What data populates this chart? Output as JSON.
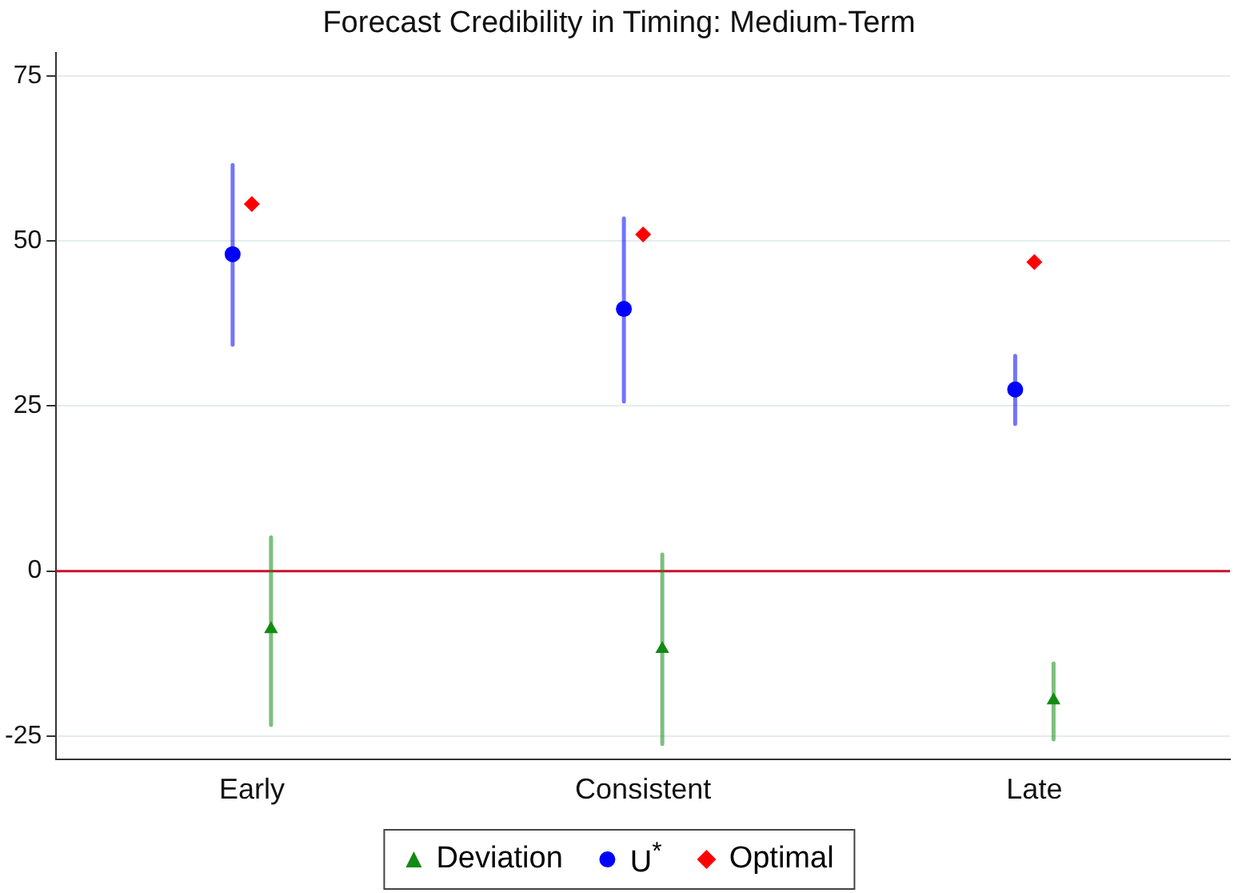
{
  "chart_data": {
    "type": "scatter",
    "title": "Forecast Credibility in Timing: Medium-Term",
    "categories": [
      "Early",
      "Consistent",
      "Late"
    ],
    "series": [
      {
        "name": "Deviation",
        "color": "#138a13",
        "marker": "triangle",
        "values": [
          -8.8,
          -11.8,
          -19.6
        ],
        "errors": [
          [
            -23.3,
            5.1
          ],
          [
            -26.2,
            2.5
          ],
          [
            -25.5,
            -14
          ]
        ]
      },
      {
        "name": "U$^{*}$",
        "color": "#0000ff",
        "marker": "circle",
        "values": [
          48,
          39.7,
          27.5
        ],
        "errors": [
          [
            34.3,
            61.5
          ],
          [
            25.7,
            53.4
          ],
          [
            22.3,
            32.6
          ]
        ]
      },
      {
        "name": "Optimal",
        "color": "#ff0000",
        "marker": "diamond",
        "values": [
          55.6,
          51,
          46.8
        ]
      }
    ],
    "ylim": [
      -28.5,
      78.5
    ],
    "yticks": [
      -25,
      0,
      25,
      50,
      75
    ],
    "grid": "y",
    "legend": "bottom",
    "ref_lines": [
      {
        "axis": "y",
        "value": 0,
        "color": "#c8102e"
      }
    ]
  }
}
